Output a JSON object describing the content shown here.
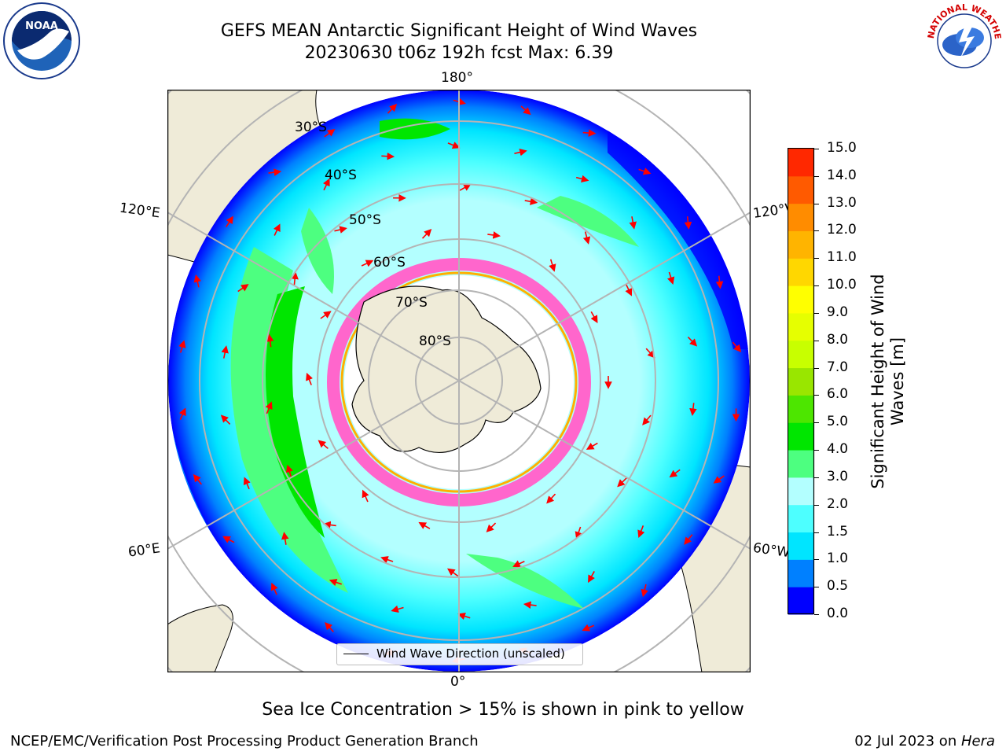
{
  "title": "GEFS MEAN Antarctic Significant Height of Wind Waves",
  "subtitle": "20230630 t06z 192h fcst   Max: 6.39",
  "logos": {
    "left": "NOAA",
    "right": "NATIONAL WEATHER SERVICE"
  },
  "longitude_labels": {
    "top": "180°",
    "bottom": "0°",
    "left_upper": "120°E",
    "left_lower": "60°E",
    "right_upper": "120°W",
    "right_lower": "60°W"
  },
  "latitude_labels": [
    "30°S",
    "40°S",
    "50°S",
    "60°S",
    "70°S",
    "80°S"
  ],
  "legend": {
    "label": "Wind Wave Direction (unscaled)"
  },
  "colorbar": {
    "label": "Significant Height of Wind Waves [m]",
    "ticks": [
      "0.0",
      "0.5",
      "1.0",
      "1.5",
      "2.0",
      "3.0",
      "4.0",
      "5.0",
      "6.0",
      "7.0",
      "8.0",
      "9.0",
      "10.0",
      "11.0",
      "12.0",
      "13.0",
      "14.0",
      "15.0"
    ],
    "colors": [
      "#0000ff",
      "#0080ff",
      "#00e5ff",
      "#4dffff",
      "#b3ffff",
      "#4dff80",
      "#00e600",
      "#4de600",
      "#99e600",
      "#c8ff00",
      "#e6ff00",
      "#ffff00",
      "#ffd700",
      "#ffb400",
      "#ff8c00",
      "#ff5a00",
      "#ff2800"
    ],
    "ocean_colors": {
      "ice": "#ff66cc",
      "ice_edge": "#ffb000",
      "land": "#efebd8"
    }
  },
  "caption": "Sea Ice Concentration > 15% is shown in pink to yellow",
  "credit": "NCEP/EMC/Verification Post Processing Product Generation Branch",
  "date": "02 Jul 2023",
  "date_on": " on ",
  "machine": "Hera"
}
